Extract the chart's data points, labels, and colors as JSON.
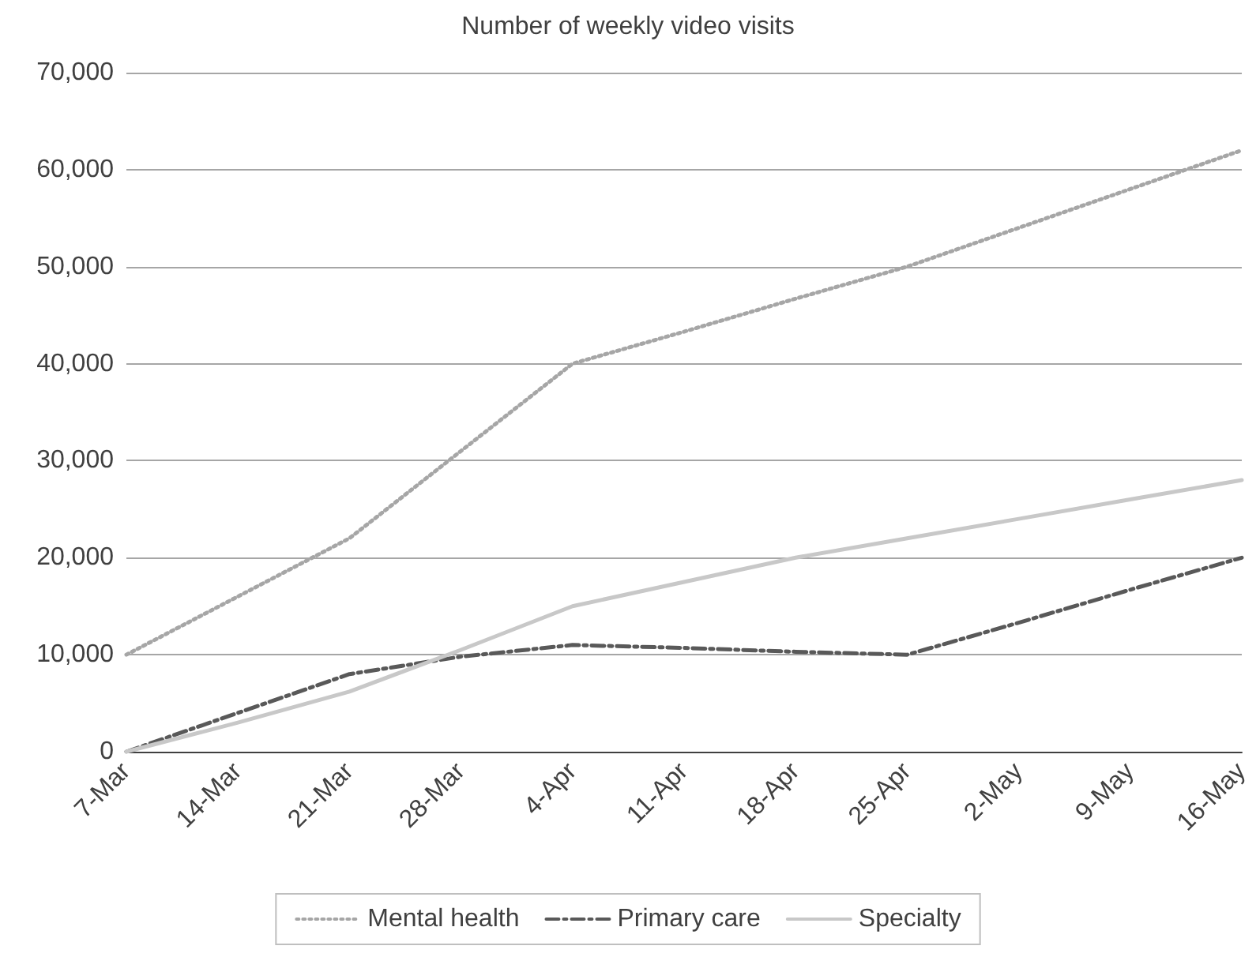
{
  "chart_data": {
    "type": "line",
    "title": "Number of weekly video visits",
    "categories": [
      "7-Mar",
      "14-Mar",
      "21-Mar",
      "28-Mar",
      "4-Apr",
      "11-Apr",
      "18-Apr",
      "25-Apr",
      "2-May",
      "9-May",
      "16-May"
    ],
    "series": [
      {
        "name": "Mental health",
        "color": "#a6a6a6",
        "line_style": "dotted",
        "values": [
          10000,
          16000,
          22000,
          31000,
          40000,
          43300,
          46700,
          50000,
          54000,
          58000,
          62000
        ]
      },
      {
        "name": "Primary care",
        "color": "#595959",
        "line_style": "dashed",
        "values": [
          0,
          4000,
          8000,
          9800,
          11000,
          10700,
          10300,
          10000,
          13300,
          16700,
          20000
        ]
      },
      {
        "name": "Specialty",
        "color": "#c8c8c8",
        "line_style": "solid",
        "values": [
          0,
          3000,
          6200,
          10500,
          15000,
          17500,
          20000,
          22000,
          24000,
          26000,
          28000
        ]
      }
    ],
    "ylim": [
      0,
      70000
    ],
    "yticks": [
      0,
      {
        "value": 10000,
        "label": "10,000"
      },
      {
        "value": 20000,
        "label": "20,000"
      },
      {
        "value": 30000,
        "label": "30,000"
      },
      {
        "value": 40000,
        "label": "40,000"
      },
      {
        "value": 50000,
        "label": "50,000"
      },
      {
        "value": 60000,
        "label": "60,000"
      },
      {
        "value": 70000,
        "label": "70,000"
      }
    ],
    "grid": "y",
    "legend": "bottom",
    "marker": "none"
  }
}
